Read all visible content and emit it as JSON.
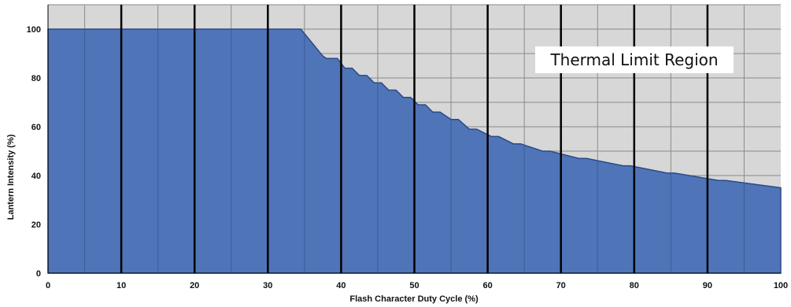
{
  "chart_data": {
    "type": "area",
    "title": "",
    "xlabel": "Flash Character Duty Cycle (%)",
    "ylabel": "Lantern Intensity (%)",
    "xlim": [
      0,
      100
    ],
    "ylim": [
      0,
      110
    ],
    "xticks": [
      0,
      10,
      20,
      30,
      40,
      50,
      60,
      70,
      80,
      90,
      100
    ],
    "yticks": [
      0,
      20,
      40,
      60,
      80,
      100
    ],
    "grid": true,
    "annotation": "Thermal Limit Region",
    "colors": {
      "area": "#4f74b8",
      "area_edge": "#2b4a86",
      "background": "#d7d7d7",
      "grid": "#8a8a8a",
      "major_grid": "#000000"
    },
    "series": [
      {
        "x": [
          0,
          34.5,
          37.5,
          38,
          39.5,
          40.5,
          41.5,
          42.5,
          43.5,
          44.5,
          45.5,
          46.5,
          47.5,
          48.5,
          49.5,
          50.5,
          51.5,
          52.5,
          53.5,
          55,
          56,
          57.5,
          58.5,
          60.5,
          61.5,
          63.5,
          64.5,
          67.5,
          68.5,
          72.5,
          73.5,
          78.5,
          79.5,
          84.5,
          85.5,
          91.5,
          92.5,
          100
        ],
        "y": [
          100,
          100,
          89,
          88,
          88,
          84,
          84,
          81,
          81,
          78,
          78,
          75,
          75,
          72,
          72,
          69,
          69,
          66,
          66,
          63,
          63,
          59,
          59,
          56,
          56,
          53,
          53,
          50,
          50,
          47,
          47,
          44,
          44,
          41,
          41,
          38,
          38,
          35
        ]
      }
    ]
  }
}
